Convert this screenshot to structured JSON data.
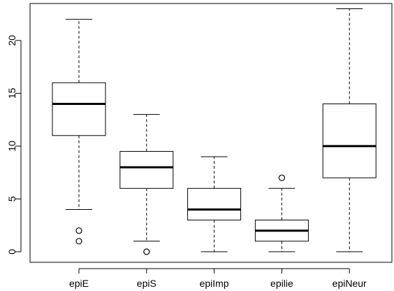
{
  "chart_data": {
    "type": "boxplot",
    "title": "",
    "xlabel": "",
    "ylabel": "",
    "categories": [
      "epiE",
      "epiS",
      "epiImp",
      "epilie",
      "epiNeur"
    ],
    "ylim": [
      -1,
      23.5
    ],
    "yticks": [
      "0",
      "5",
      "10",
      "15",
      "20"
    ],
    "grid": false,
    "boxes": [
      {
        "name": "epiE",
        "whisker_low": 4,
        "q1": 11,
        "median": 14,
        "q3": 16,
        "whisker_high": 22,
        "outliers": [
          1,
          2
        ]
      },
      {
        "name": "epiS",
        "whisker_low": 1,
        "q1": 6,
        "median": 8,
        "q3": 9.5,
        "whisker_high": 13,
        "outliers": [
          0
        ]
      },
      {
        "name": "epiImp",
        "whisker_low": 0,
        "q1": 3,
        "median": 4,
        "q3": 6,
        "whisker_high": 9,
        "outliers": []
      },
      {
        "name": "epilie",
        "whisker_low": 0,
        "q1": 1,
        "median": 2,
        "q3": 3,
        "whisker_high": 6,
        "outliers": [
          7
        ]
      },
      {
        "name": "epiNeur",
        "whisker_low": 0,
        "q1": 7,
        "median": 10,
        "q3": 14,
        "whisker_high": 23,
        "outliers": []
      }
    ]
  }
}
